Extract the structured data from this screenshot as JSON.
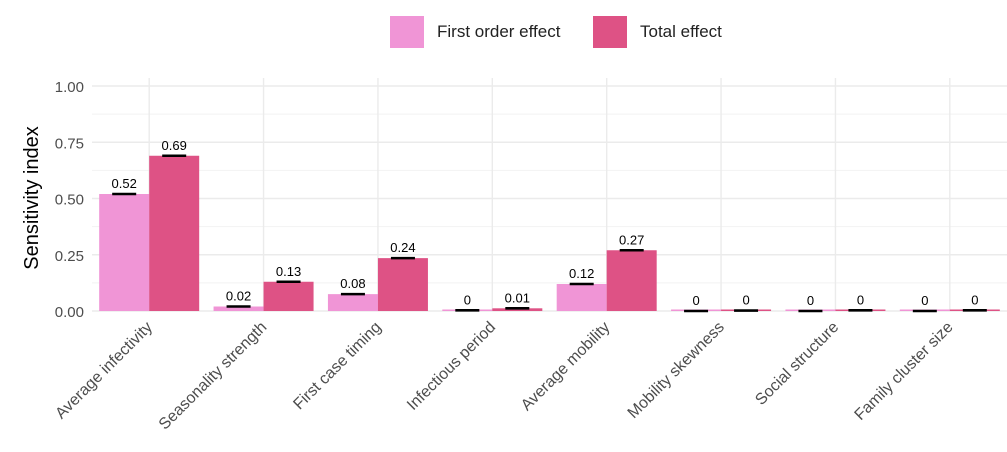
{
  "chart_data": {
    "type": "bar",
    "ylabel": "Sensitivity index",
    "xlabel": "",
    "ylim": [
      0,
      1
    ],
    "yticks": [
      "0.00",
      "0.25",
      "0.50",
      "0.75",
      "1.00"
    ],
    "ytick_values": [
      0,
      0.25,
      0.5,
      0.75,
      1.0
    ],
    "grid": true,
    "legend_position": "top",
    "categories": [
      "Average infectivity",
      "Seasonality strength",
      "First case timing",
      "Infectious period",
      "Average mobility",
      "Mobility skewness",
      "Social structure",
      "Family cluster size"
    ],
    "series": [
      {
        "name": "First order effect",
        "color": "#f095d6",
        "values": [
          0.52,
          0.02,
          0.075,
          0.003,
          0.12,
          0.0,
          0.0,
          0.0
        ],
        "labels": [
          "0.52",
          "0.02",
          "0.08",
          "0",
          "0.12",
          "0",
          "0",
          "0"
        ]
      },
      {
        "name": "Total effect",
        "color": "#de5285",
        "values": [
          0.69,
          0.13,
          0.235,
          0.012,
          0.27,
          0.002,
          0.003,
          0.003
        ],
        "labels": [
          "0.69",
          "0.13",
          "0.24",
          "0.01",
          "0.27",
          "0",
          "0",
          "0"
        ]
      }
    ]
  }
}
